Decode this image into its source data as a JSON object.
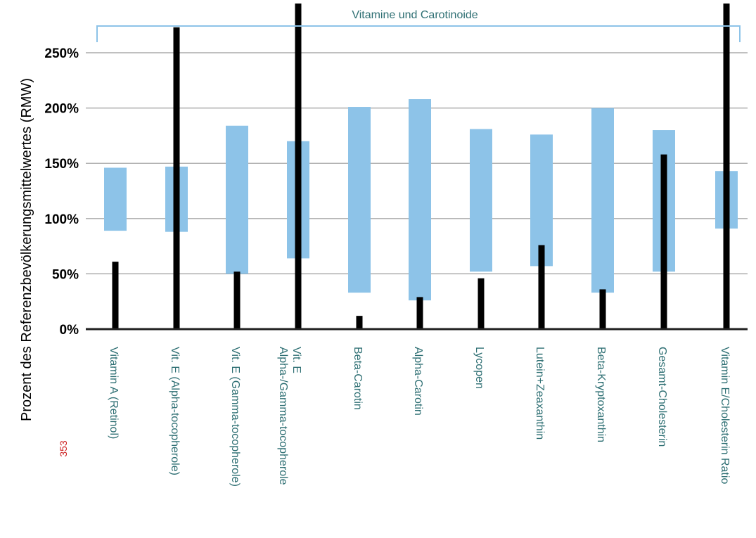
{
  "chart_data": {
    "type": "bar",
    "title": "",
    "group_label": "Vitamine und Carotinoide",
    "ylabel": "Prozent des Referenzbevölkerungsmittelwertes (RMW)",
    "xlabel": "",
    "ylim": [
      0,
      280
    ],
    "yticks": [
      {
        "value": 0,
        "label": "0%"
      },
      {
        "value": 50,
        "label": "50%"
      },
      {
        "value": 100,
        "label": "100%"
      },
      {
        "value": 150,
        "label": "150%"
      },
      {
        "value": 200,
        "label": "200%"
      },
      {
        "value": 250,
        "label": "250%"
      }
    ],
    "grid": true,
    "categories": [
      [
        "Vitamin A (Retinol)"
      ],
      [
        "Vit. E (Alpha-tocopherole)"
      ],
      [
        "Vit. E (Gamma-tocopherole)"
      ],
      [
        "Vit. E",
        "Alpha-/Gamma-tocopherole"
      ],
      [
        "Beta-Carotin"
      ],
      [
        "Alpha-Carotin"
      ],
      [
        "Lycopen"
      ],
      [
        "Lutein+Zeaxanthin"
      ],
      [
        "Beta-Kryptoxanthin"
      ],
      [
        "Gesamt-Cholesterin"
      ],
      [
        "Vitamin E/Cholesterin Ratio"
      ]
    ],
    "series": [
      {
        "name": "",
        "kind": "range",
        "color": "#8dc3e8",
        "values": [
          [
            89,
            146
          ],
          [
            88,
            147
          ],
          [
            50,
            184
          ],
          [
            64,
            170
          ],
          [
            33,
            201
          ],
          [
            26,
            208
          ],
          [
            52,
            181
          ],
          [
            57,
            176
          ],
          [
            33,
            200
          ],
          [
            52,
            180
          ],
          [
            91,
            143
          ]
        ]
      },
      {
        "name": "",
        "kind": "value",
        "color": "#000000",
        "values": [
          61,
          273,
          52,
          295,
          12,
          29,
          46,
          76,
          36,
          158,
          295
        ]
      }
    ]
  },
  "page_number": "353"
}
